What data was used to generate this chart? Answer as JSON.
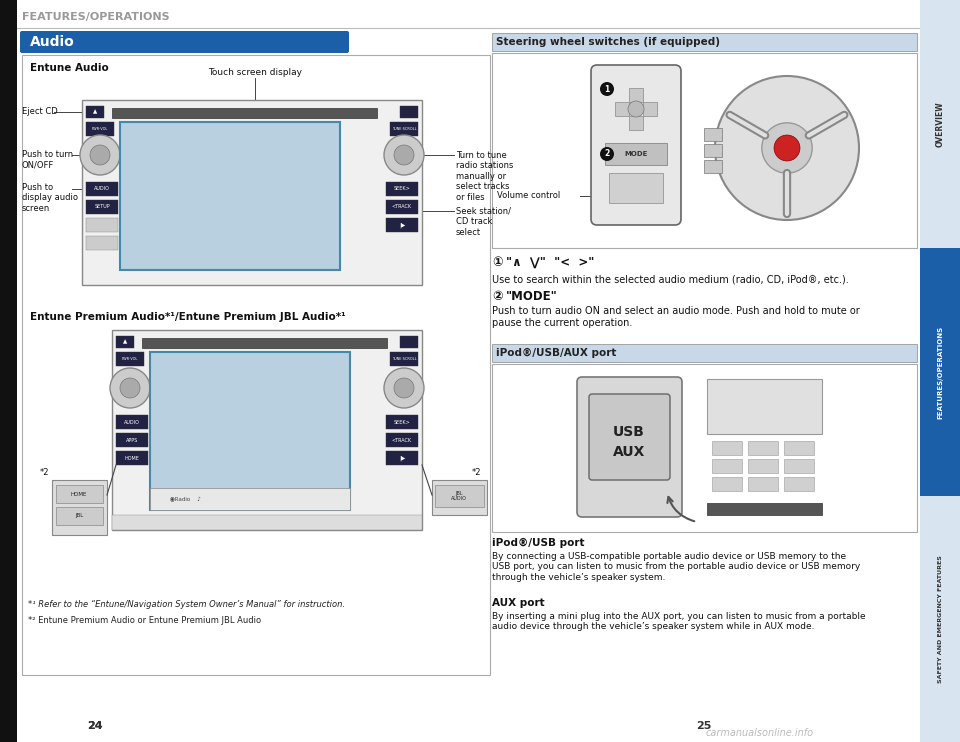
{
  "bg_color": "#ffffff",
  "header_text": "FEATURES/OPERATIONS",
  "header_color": "#999999",
  "audio_title": "Audio",
  "audio_title_bg": "#1a5fa8",
  "audio_title_fg": "#ffffff",
  "entune_audio_label": "Entune Audio",
  "touch_screen_label": "Touch screen display",
  "eject_cd_label": "Eject CD",
  "push_on_off_label": "Push to turn\nON/OFF",
  "push_display_label": "Push to\ndisplay audio\nscreen",
  "turn_tune_label": "Turn to tune\nradio stations\nmanually or\nselect tracks\nor files",
  "seek_label": "Seek station/\nCD track\nselect",
  "entune_premium_label": "Entune Premium Audio*¹/Entune Premium JBL Audio*¹",
  "footnote1": "*¹ Refer to the “Entune/Navigation System Owner’s Manual” for instruction.",
  "footnote2": "*² Entune Premium Audio or Entune Premium JBL Audio",
  "star2_label": "*2",
  "steering_title": "Steering wheel switches (if equipped)",
  "steering_title_bg": "#c8d8e8",
  "item1_bold": "①  “ ∧ ⋁” “<   >”",
  "item1_desc": "Use to search within the selected audio medium (radio, CD, iPod®, etc.).",
  "item2_bold": "②  “MODE”",
  "item2_desc": "Push to turn audio ON and select an audio mode. Push and hold to mute or\npause the current operation.",
  "ipod_title": "iPod®/USB/AUX port",
  "ipod_title_bg": "#c8d8e8",
  "ipod_port_bold": "iPod®/USB port",
  "ipod_port_desc": "By connecting a USB-compatible portable audio device or USB memory to the\nUSB port, you can listen to music from the portable audio device or USB memory\nthrough the vehicle’s speaker system.",
  "aux_port_bold": "AUX port",
  "aux_port_desc": "By inserting a mini plug into the AUX port, you can listen to music from a portable\naudio device through the vehicle’s speaker system while in AUX mode.",
  "page_num_left": "24",
  "page_num_right": "25",
  "right_tab_overview": "OVERVIEW",
  "right_tab_features": "FEATURES/OPERATIONS",
  "right_tab_safety": "SAFETY AND EMERGENCY FEATURES",
  "right_tab_features_bg": "#1a5fa8",
  "right_tab_other_bg": "#d8e4f0",
  "volume_control_label": "Volume control",
  "watermark": "carmanualsonline.info",
  "line_color": "#444444",
  "unit_bg": "#f0f0f0",
  "unit_border": "#888888",
  "screen_bg": "#b8d0e0",
  "screen_border": "#4488aa",
  "btn_bg": "#dddddd",
  "btn_dark": "#222244",
  "knob_outer": "#cccccc",
  "knob_inner": "#888888"
}
